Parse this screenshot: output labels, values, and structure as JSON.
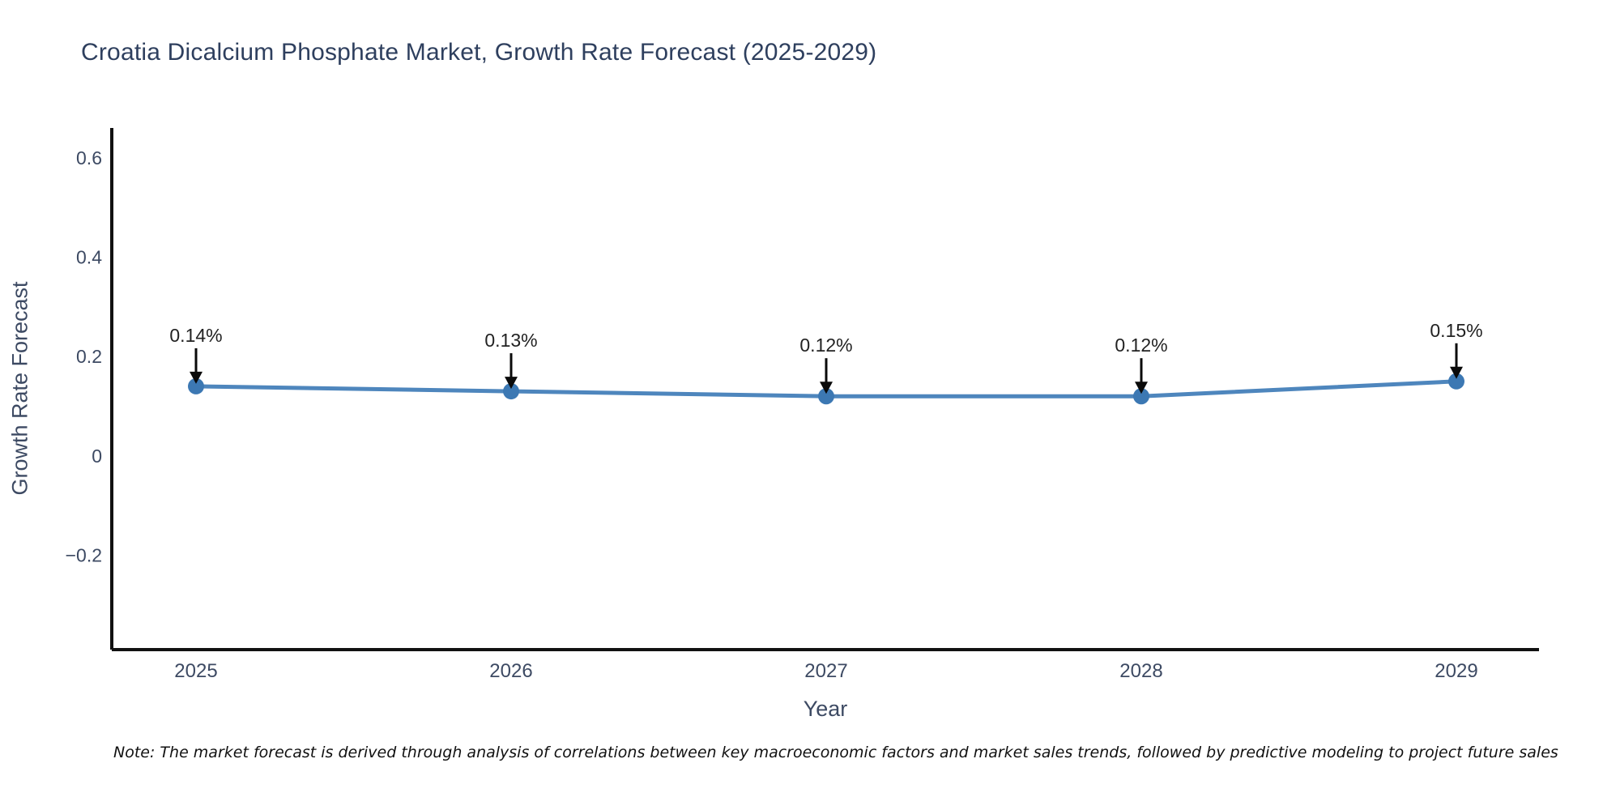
{
  "title": "Croatia Dicalcium Phosphate Market, Growth Rate Forecast (2025-2029)",
  "note": "Note: The market forecast is derived through analysis of correlations between key macroeconomic factors and market sales trends, followed by predictive modeling to project future sales",
  "chart_data": {
    "type": "line",
    "x": [
      2025,
      2026,
      2027,
      2028,
      2029
    ],
    "values": [
      0.14,
      0.13,
      0.12,
      0.12,
      0.15
    ],
    "point_labels": [
      "0.14%",
      "0.13%",
      "0.12%",
      "0.12%",
      "0.15%"
    ],
    "title": "Croatia Dicalcium Phosphate Market, Growth Rate Forecast (2025-2029)",
    "xlabel": "Year",
    "ylabel": "Growth Rate Forecast",
    "xtick_labels": [
      "2025",
      "2026",
      "2027",
      "2028",
      "2029"
    ],
    "yticks": [
      0.6,
      0.4,
      0.2,
      0,
      -0.2
    ],
    "ytick_labels": [
      "0.6",
      "0.4",
      "0.2",
      "0",
      "−0.2"
    ],
    "ylim": [
      -0.39,
      0.66
    ],
    "grid": false,
    "legend": "none",
    "line_color": "#4e86bd",
    "marker_color": "#3c78b3",
    "axis_color": "#111111",
    "annotation_color": "#222222",
    "tick_color": "#3d4a63"
  }
}
